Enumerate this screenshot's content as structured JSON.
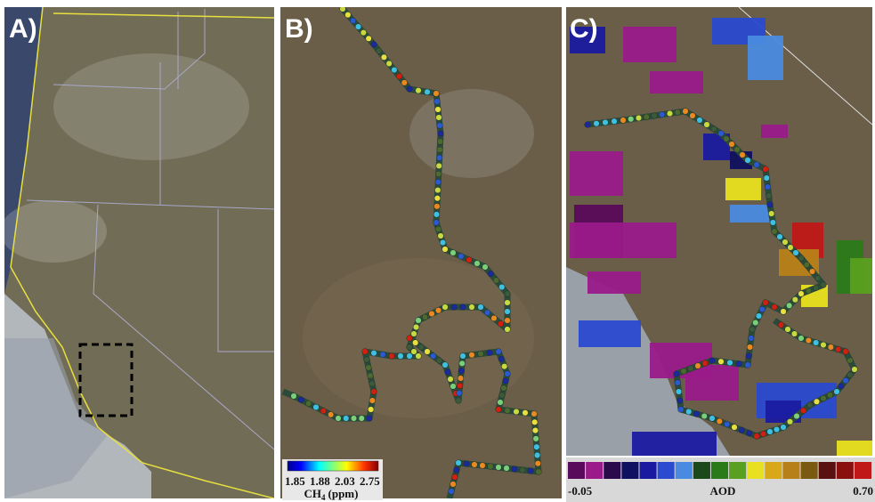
{
  "panels": [
    {
      "label": "A)"
    },
    {
      "label": "B)",
      "colorbar": {
        "ticks": [
          "1.85",
          "1.88",
          "2.03",
          "2.75"
        ],
        "title": {
          "base": "CH",
          "subscript": "4",
          "unit": "(ppm)"
        }
      }
    },
    {
      "label": "C)",
      "colorbar": {
        "min_label": "-0.05",
        "title": "AOD",
        "max_label": "0.70",
        "colors": [
          "#5a0a5a",
          "#9a1a8a",
          "#2a0a4a",
          "#101060",
          "#1a1aa0",
          "#2a4ad0",
          "#4a8ae0",
          "#1a4a1a",
          "#2a7a1a",
          "#5aa020",
          "#e8e020",
          "#d8a818",
          "#b88018",
          "#7a5a10",
          "#5a1010",
          "#8a1010",
          "#c01818"
        ]
      }
    }
  ]
}
